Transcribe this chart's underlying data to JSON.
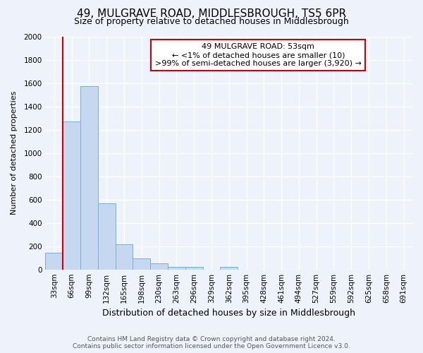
{
  "title": "49, MULGRAVE ROAD, MIDDLESBROUGH, TS5 6PR",
  "subtitle": "Size of property relative to detached houses in Middlesbrough",
  "xlabel": "Distribution of detached houses by size in Middlesbrough",
  "ylabel": "Number of detached properties",
  "footer_line1": "Contains HM Land Registry data © Crown copyright and database right 2024.",
  "footer_line2": "Contains public sector information licensed under the Open Government Licence v3.0.",
  "bins": [
    "33sqm",
    "66sqm",
    "99sqm",
    "132sqm",
    "165sqm",
    "198sqm",
    "230sqm",
    "263sqm",
    "296sqm",
    "329sqm",
    "362sqm",
    "395sqm",
    "428sqm",
    "461sqm",
    "494sqm",
    "527sqm",
    "559sqm",
    "592sqm",
    "625sqm",
    "658sqm",
    "691sqm"
  ],
  "values": [
    145,
    1270,
    1570,
    570,
    215,
    95,
    50,
    25,
    20,
    0,
    20,
    0,
    0,
    0,
    0,
    0,
    0,
    0,
    0,
    0,
    0
  ],
  "bar_color": "#c5d8f0",
  "bar_edge_color": "#7badd6",
  "property_line_color": "#cc0000",
  "property_line_x": 0.5,
  "annotation_line1": "49 MULGRAVE ROAD: 53sqm",
  "annotation_line2": "← <1% of detached houses are smaller (10)",
  "annotation_line3": ">99% of semi-detached houses are larger (3,920) →",
  "annotation_box_color": "#ffffff",
  "annotation_box_edge": "#cc0000",
  "ylim": [
    0,
    2000
  ],
  "yticks": [
    0,
    200,
    400,
    600,
    800,
    1000,
    1200,
    1400,
    1600,
    1800,
    2000
  ],
  "background_color": "#eef2fb",
  "grid_color": "#ffffff",
  "title_fontsize": 11,
  "subtitle_fontsize": 9,
  "xlabel_fontsize": 9,
  "ylabel_fontsize": 8,
  "tick_fontsize": 7.5,
  "annotation_fontsize": 8
}
